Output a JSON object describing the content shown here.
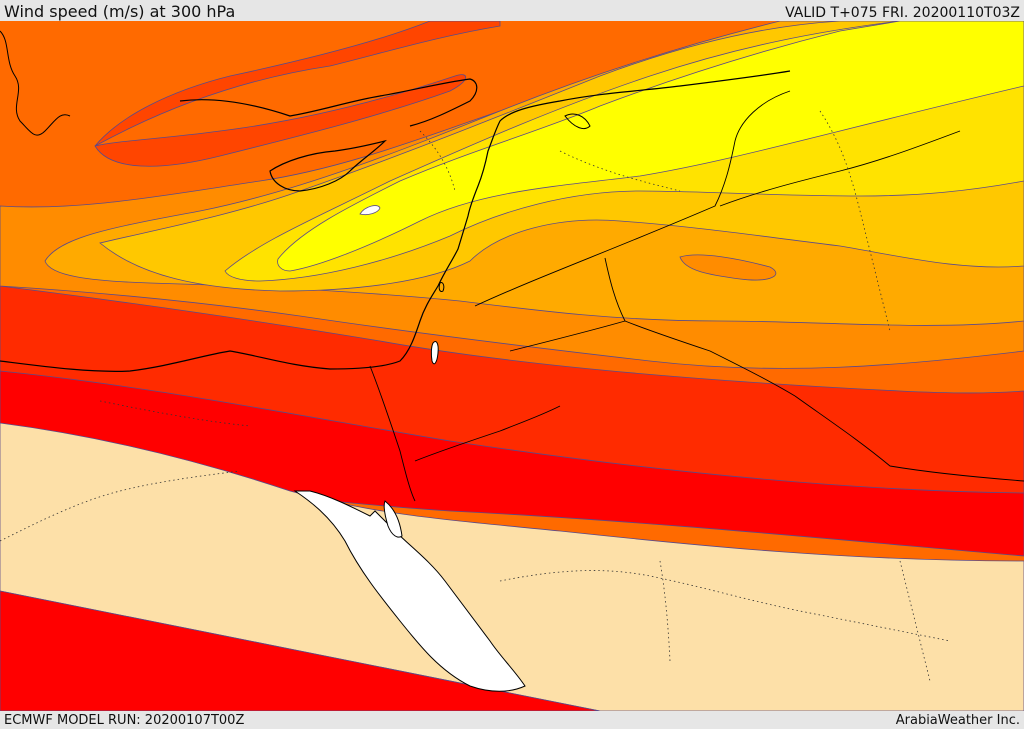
{
  "title": "Wind speed (m/s) at 300 hPa",
  "valid_time": "VALID T+075 FRI. 20200110T03Z",
  "model_run": "ECMWF MODEL RUN: 20200107T00Z",
  "credit": "ArabiaWeather Inc.",
  "colors": {
    "band_wheat": "#fde0a8",
    "band_red": "#ff0000",
    "band_red_orange": "#ff2b00",
    "band_orange_red": "#ff4500",
    "band_dark_orange": "#ff6a00",
    "band_orange": "#ff8c00",
    "band_amber": "#ffaa00",
    "band_gold": "#ffc800",
    "band_yellow_gold": "#ffe300",
    "band_yellow": "#ffff00",
    "band_white": "#ffffff",
    "contour_line": "#5a4a8a",
    "coastline": "#000000"
  }
}
